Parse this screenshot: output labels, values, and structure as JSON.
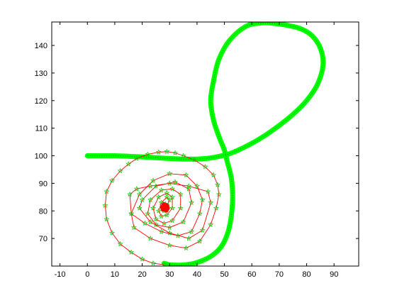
{
  "chart_data": {
    "type": "line",
    "title": "",
    "xlabel": "",
    "ylabel": "",
    "xlim": [
      -13,
      99
    ],
    "ylim": [
      60,
      148.5
    ],
    "grid": false,
    "legend": "none",
    "x_ticks": [
      -10,
      0,
      10,
      20,
      30,
      40,
      50,
      60,
      70,
      80,
      90
    ],
    "y_ticks": [
      70,
      80,
      90,
      100,
      110,
      120,
      130,
      140
    ],
    "series": [
      {
        "style": "thick-green-curve",
        "color": "#00ff00",
        "x": [
          0,
          5,
          10,
          15,
          20,
          25,
          30,
          35,
          40,
          45,
          50,
          52,
          55,
          60,
          65,
          70,
          75,
          80,
          84,
          86,
          85,
          82,
          78,
          73,
          68,
          64,
          58,
          52,
          48,
          46,
          45,
          46,
          48,
          50,
          51,
          52.5,
          53,
          52.5,
          51.5,
          50,
          48,
          45,
          42,
          39,
          36,
          33,
          30,
          28
        ],
        "y": [
          100,
          100,
          100,
          99.8,
          99.6,
          99.3,
          99,
          98.8,
          98.8,
          99.2,
          100.2,
          100.8,
          102,
          104.5,
          107.5,
          111,
          115,
          120,
          126,
          133,
          139,
          143.5,
          146,
          147.3,
          148,
          148.2,
          147,
          142,
          135,
          127,
          120,
          113,
          107,
          102,
          98,
          92,
          85,
          78,
          73,
          69,
          66,
          63.5,
          62,
          61,
          60.5,
          60.3,
          60.5,
          61
        ]
      },
      {
        "style": "red-line-green-star-markers",
        "line_color": "#ff0000",
        "marker_color": "#00cc00",
        "x": [
          28,
          24,
          20,
          16,
          12,
          9,
          7,
          6.5,
          7,
          9,
          12,
          15,
          18,
          22,
          26,
          29,
          32,
          35,
          39,
          43,
          46,
          47.5,
          48,
          47,
          45,
          41,
          36,
          30,
          23,
          17,
          16,
          19,
          24,
          30,
          36,
          40,
          42,
          41,
          38,
          33,
          27,
          21,
          16,
          15.5,
          18,
          23,
          30,
          37,
          44,
          45,
          42,
          37,
          30,
          23,
          19,
          20,
          25,
          32,
          37,
          38,
          35,
          30,
          25,
          22,
          23,
          27,
          31,
          34,
          34,
          31,
          28,
          25,
          24,
          26,
          29,
          31,
          31,
          29,
          27,
          26,
          27,
          29,
          30,
          29,
          28,
          27.5,
          28.5,
          29,
          28.5
        ],
        "y": [
          60.5,
          61,
          62.5,
          65,
          68,
          72,
          77,
          82,
          87,
          91,
          94.5,
          97,
          99,
          100.5,
          101.3,
          101.5,
          101,
          100,
          98.5,
          96,
          93,
          89.5,
          86,
          81,
          75,
          69,
          66.5,
          67.5,
          70,
          74,
          79,
          86,
          91,
          93.5,
          93,
          89,
          84,
          79,
          72.5,
          71,
          72.5,
          75.5,
          79,
          86,
          88,
          89,
          90,
          89,
          87,
          83,
          73,
          70,
          72,
          76,
          81,
          84,
          89,
          90.5,
          88,
          83,
          76,
          74,
          75,
          79,
          84,
          87.5,
          88,
          86,
          81,
          76.5,
          75.5,
          77,
          81,
          85,
          86.5,
          85,
          81,
          78.5,
          78,
          80,
          83,
          85,
          84,
          81.5,
          80,
          81,
          82.5,
          82,
          81
        ]
      },
      {
        "style": "red-dot-cluster",
        "color": "#ff0000",
        "x": [
          28.2,
          29,
          27.6,
          28.8,
          27.9,
          28.5,
          28.1,
          28.7,
          27.7,
          28.4,
          29.2,
          27.4,
          28.3
        ],
        "y": [
          81.2,
          81.8,
          80.6,
          80.3,
          82.3,
          82.0,
          80.9,
          81.5,
          81.7,
          80.5,
          81.0,
          81.3,
          81.9
        ]
      }
    ]
  }
}
